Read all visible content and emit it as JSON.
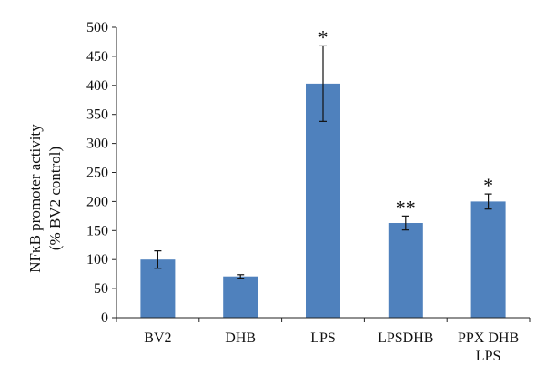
{
  "chart_data": {
    "type": "bar",
    "title": "",
    "xlabel": "",
    "ylabel_line1": "NFκB promoter activity",
    "ylabel_line2": "(% BV2 control)",
    "ylim": [
      0,
      500
    ],
    "yticks": [
      0,
      50,
      100,
      150,
      200,
      250,
      300,
      350,
      400,
      450,
      500
    ],
    "ytick_labels": [
      "0",
      "50",
      "100",
      "150",
      "200",
      "250",
      "300",
      "350",
      "400",
      "450",
      "500"
    ],
    "categories": [
      "BV2",
      "DHB",
      "LPS",
      "LPSDHB",
      "PPX DHB LPS"
    ],
    "category_lines": [
      [
        "BV2"
      ],
      [
        "DHB"
      ],
      [
        "LPS"
      ],
      [
        "LPSDHB"
      ],
      [
        "PPX DHB",
        "LPS"
      ]
    ],
    "values": [
      100,
      71,
      403,
      163,
      200
    ],
    "errors": [
      15,
      3,
      65,
      12,
      13
    ],
    "significance": [
      "",
      "",
      "*",
      "**",
      "*"
    ],
    "bar_color": "#4f81bd",
    "grid": false,
    "legend": "none"
  }
}
